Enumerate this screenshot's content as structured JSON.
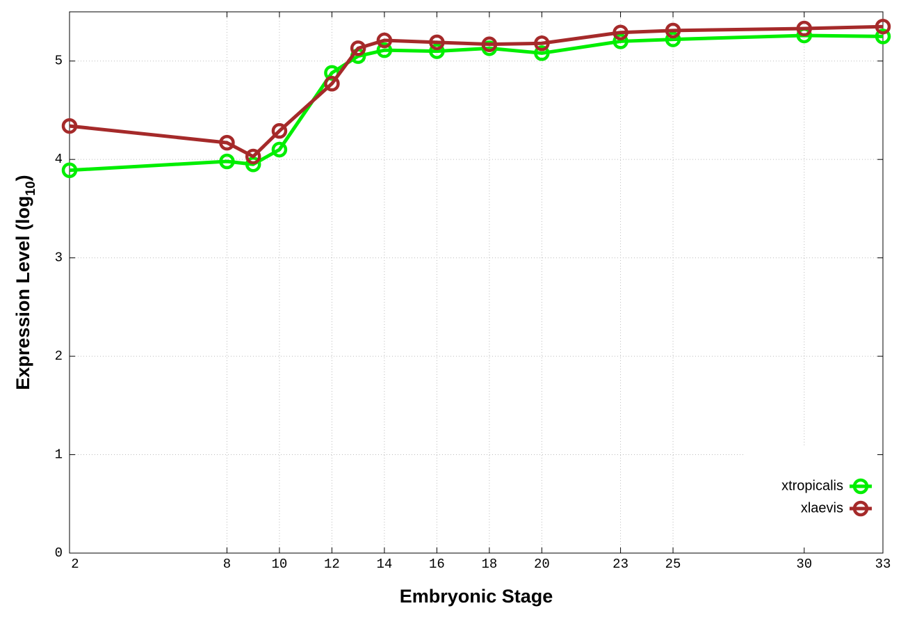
{
  "chart_data": {
    "type": "line",
    "xlabel": "Embryonic Stage",
    "ylabel": {
      "text": "Expression Level (log",
      "sub": "10",
      "suffix": ")"
    },
    "x": [
      2,
      8,
      9,
      10,
      12,
      13,
      14,
      16,
      18,
      20,
      23,
      25,
      30,
      33
    ],
    "series": [
      {
        "name": "xtropicalis",
        "color": "#00ee00",
        "values": [
          3.89,
          3.98,
          3.95,
          4.1,
          4.88,
          5.05,
          5.11,
          5.1,
          5.13,
          5.08,
          5.2,
          5.22,
          5.26,
          5.25
        ]
      },
      {
        "name": "xlaevis",
        "color": "#a52a2a",
        "values": [
          4.34,
          4.17,
          4.03,
          4.29,
          4.77,
          5.13,
          5.21,
          5.19,
          5.17,
          5.18,
          5.29,
          5.31,
          5.33,
          5.35
        ]
      }
    ],
    "xlim": [
      2,
      33
    ],
    "xticks": [
      2,
      8,
      10,
      12,
      14,
      16,
      18,
      20,
      23,
      25,
      30,
      33
    ],
    "ylim": [
      0,
      5.5
    ],
    "yticks": [
      0,
      1,
      2,
      3,
      4,
      5
    ],
    "grid": true,
    "legend": "lower right"
  }
}
